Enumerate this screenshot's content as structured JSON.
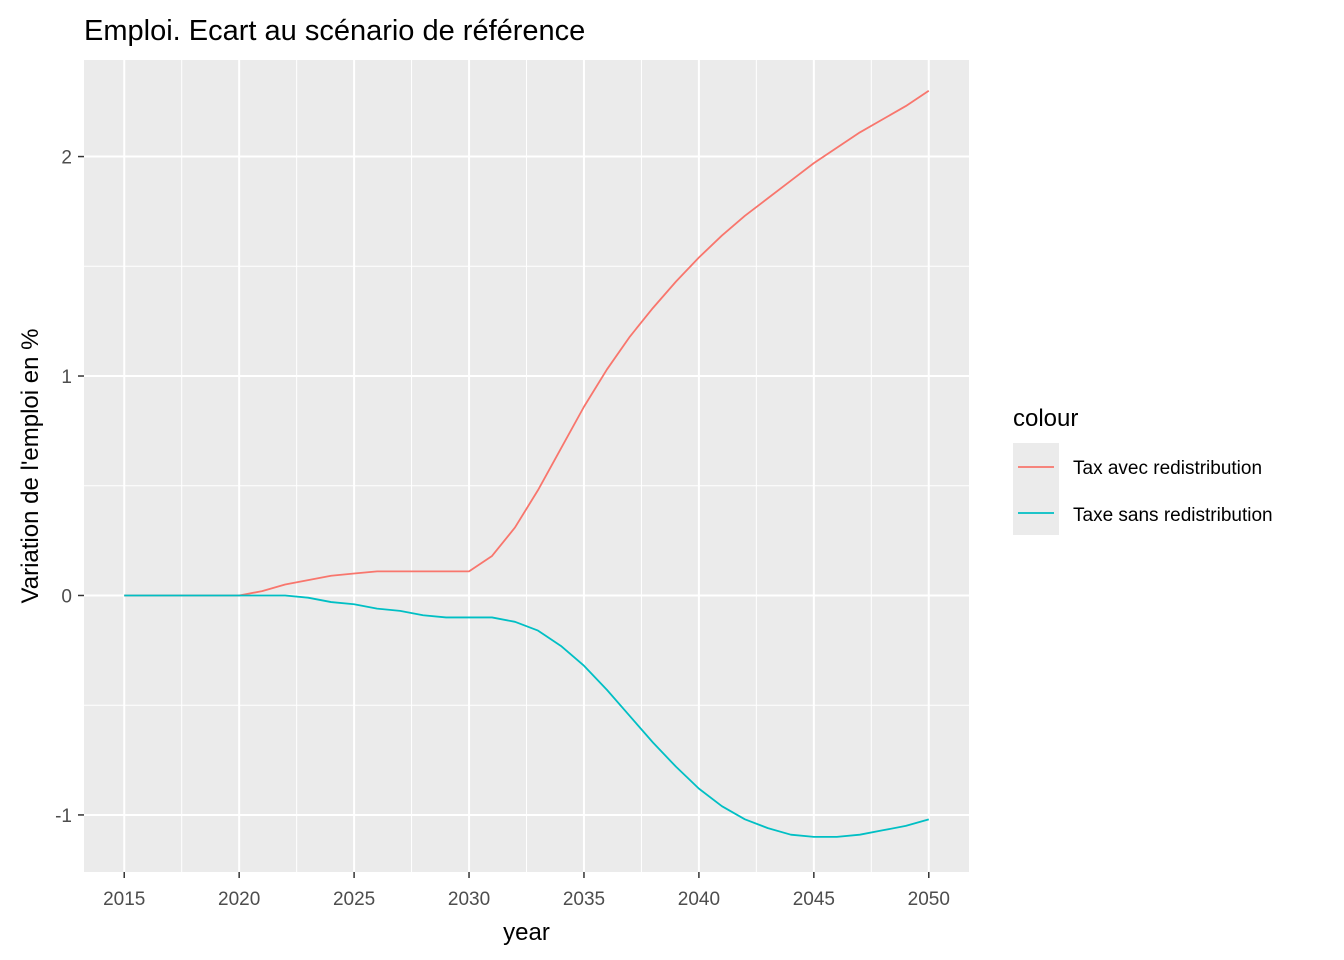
{
  "chart_data": {
    "type": "line",
    "title": "Emploi. Ecart au scénario de référence",
    "xlabel": "year",
    "ylabel": "Variation de l'emploi en %",
    "xlim": [
      2013.25,
      2051.75
    ],
    "ylim": [
      -1.26,
      2.44
    ],
    "x_ticks": [
      "2015",
      "2020",
      "2025",
      "2030",
      "2035",
      "2040",
      "2045",
      "2050"
    ],
    "y_ticks": [
      "-1",
      "0",
      "1",
      "2"
    ],
    "grid": true,
    "legend_position": "right",
    "legend_title": "colour",
    "background": "#ebebeb",
    "gridline_color": "#ffffff",
    "x": [
      2015,
      2016,
      2017,
      2018,
      2019,
      2020,
      2021,
      2022,
      2023,
      2024,
      2025,
      2026,
      2027,
      2028,
      2029,
      2030,
      2031,
      2032,
      2033,
      2034,
      2035,
      2036,
      2037,
      2038,
      2039,
      2040,
      2041,
      2042,
      2043,
      2044,
      2045,
      2046,
      2047,
      2048,
      2049,
      2050
    ],
    "series": [
      {
        "name": "Tax avec redistribution",
        "color": "#f8766d",
        "values": [
          0,
          0,
          0,
          0,
          0,
          0,
          0.02,
          0.05,
          0.07,
          0.09,
          0.1,
          0.11,
          0.11,
          0.11,
          0.11,
          0.11,
          0.18,
          0.31,
          0.48,
          0.67,
          0.86,
          1.03,
          1.18,
          1.31,
          1.43,
          1.54,
          1.64,
          1.73,
          1.81,
          1.89,
          1.97,
          2.04,
          2.11,
          2.17,
          2.23,
          2.3
        ]
      },
      {
        "name": "Taxe sans redistribution",
        "color": "#00bfc4",
        "values": [
          0,
          0,
          0,
          0,
          0,
          0,
          0,
          0,
          -0.01,
          -0.03,
          -0.04,
          -0.06,
          -0.07,
          -0.09,
          -0.1,
          -0.1,
          -0.1,
          -0.12,
          -0.16,
          -0.23,
          -0.32,
          -0.43,
          -0.55,
          -0.67,
          -0.78,
          -0.88,
          -0.96,
          -1.02,
          -1.06,
          -1.09,
          -1.1,
          -1.1,
          -1.09,
          -1.07,
          -1.05,
          -1.02
        ]
      }
    ]
  }
}
